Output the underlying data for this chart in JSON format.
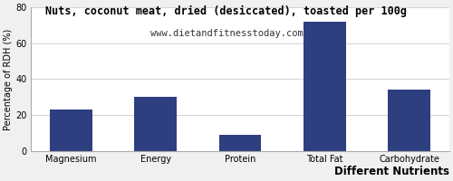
{
  "title": "Nuts, coconut meat, dried (desiccated), toasted per 100g",
  "subtitle": "www.dietandfitnesstoday.com",
  "xlabel": "Different Nutrients",
  "ylabel": "Percentage of RDH (%)",
  "categories": [
    "Magnesium",
    "Energy",
    "Protein",
    "Total Fat",
    "Carbohydrate"
  ],
  "values": [
    23,
    30,
    9,
    72,
    34
  ],
  "bar_color": "#2d3f7f",
  "ylim": [
    0,
    80
  ],
  "yticks": [
    0,
    20,
    40,
    60,
    80
  ],
  "bg_color": "#f0f0f0",
  "plot_bg_color": "#ffffff",
  "title_fontsize": 8.5,
  "subtitle_fontsize": 7.5,
  "xlabel_fontsize": 8.5,
  "ylabel_fontsize": 7,
  "tick_fontsize": 7
}
